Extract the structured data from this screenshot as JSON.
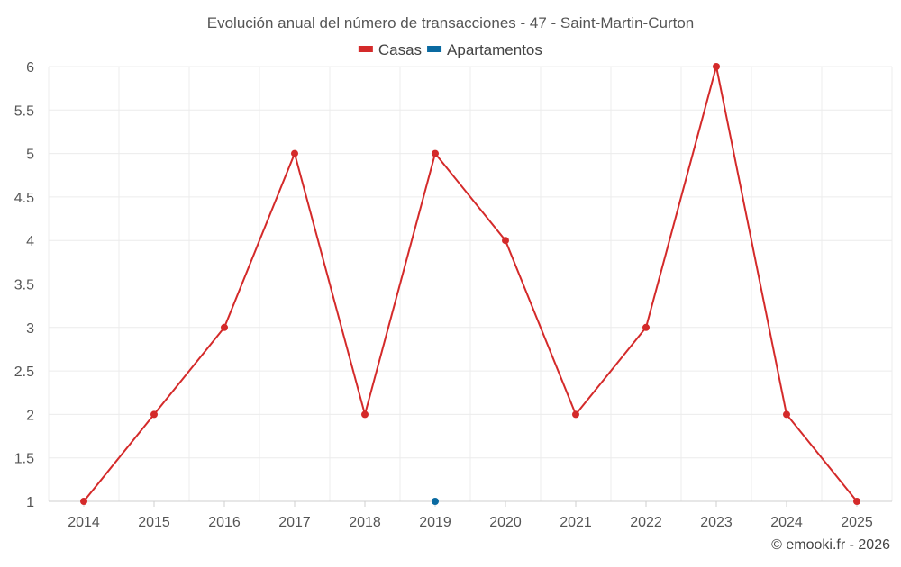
{
  "chart_data": {
    "type": "line",
    "title": "Evolución anual del número de transacciones - 47 - Saint-Martin-Curton",
    "categories": [
      "2014",
      "2015",
      "2016",
      "2017",
      "2018",
      "2019",
      "2020",
      "2021",
      "2022",
      "2023",
      "2024",
      "2025"
    ],
    "series": [
      {
        "name": "Casas",
        "color": "#d42a2a",
        "values": [
          1,
          2,
          3,
          5,
          2,
          5,
          4,
          2,
          3,
          6,
          2,
          1
        ]
      },
      {
        "name": "Apartamentos",
        "color": "#0a6aa1",
        "values": [
          null,
          null,
          null,
          null,
          null,
          1,
          null,
          null,
          null,
          null,
          null,
          null
        ]
      }
    ],
    "ylim": [
      1,
      6
    ],
    "yticks": [
      1,
      1.5,
      2,
      2.5,
      3,
      3.5,
      4,
      4.5,
      5,
      5.5,
      6
    ],
    "xlabel": "",
    "ylabel": "",
    "grid": true,
    "legend_position": "top-center"
  },
  "footer": {
    "credit": "© emooki.fr - 2026"
  }
}
